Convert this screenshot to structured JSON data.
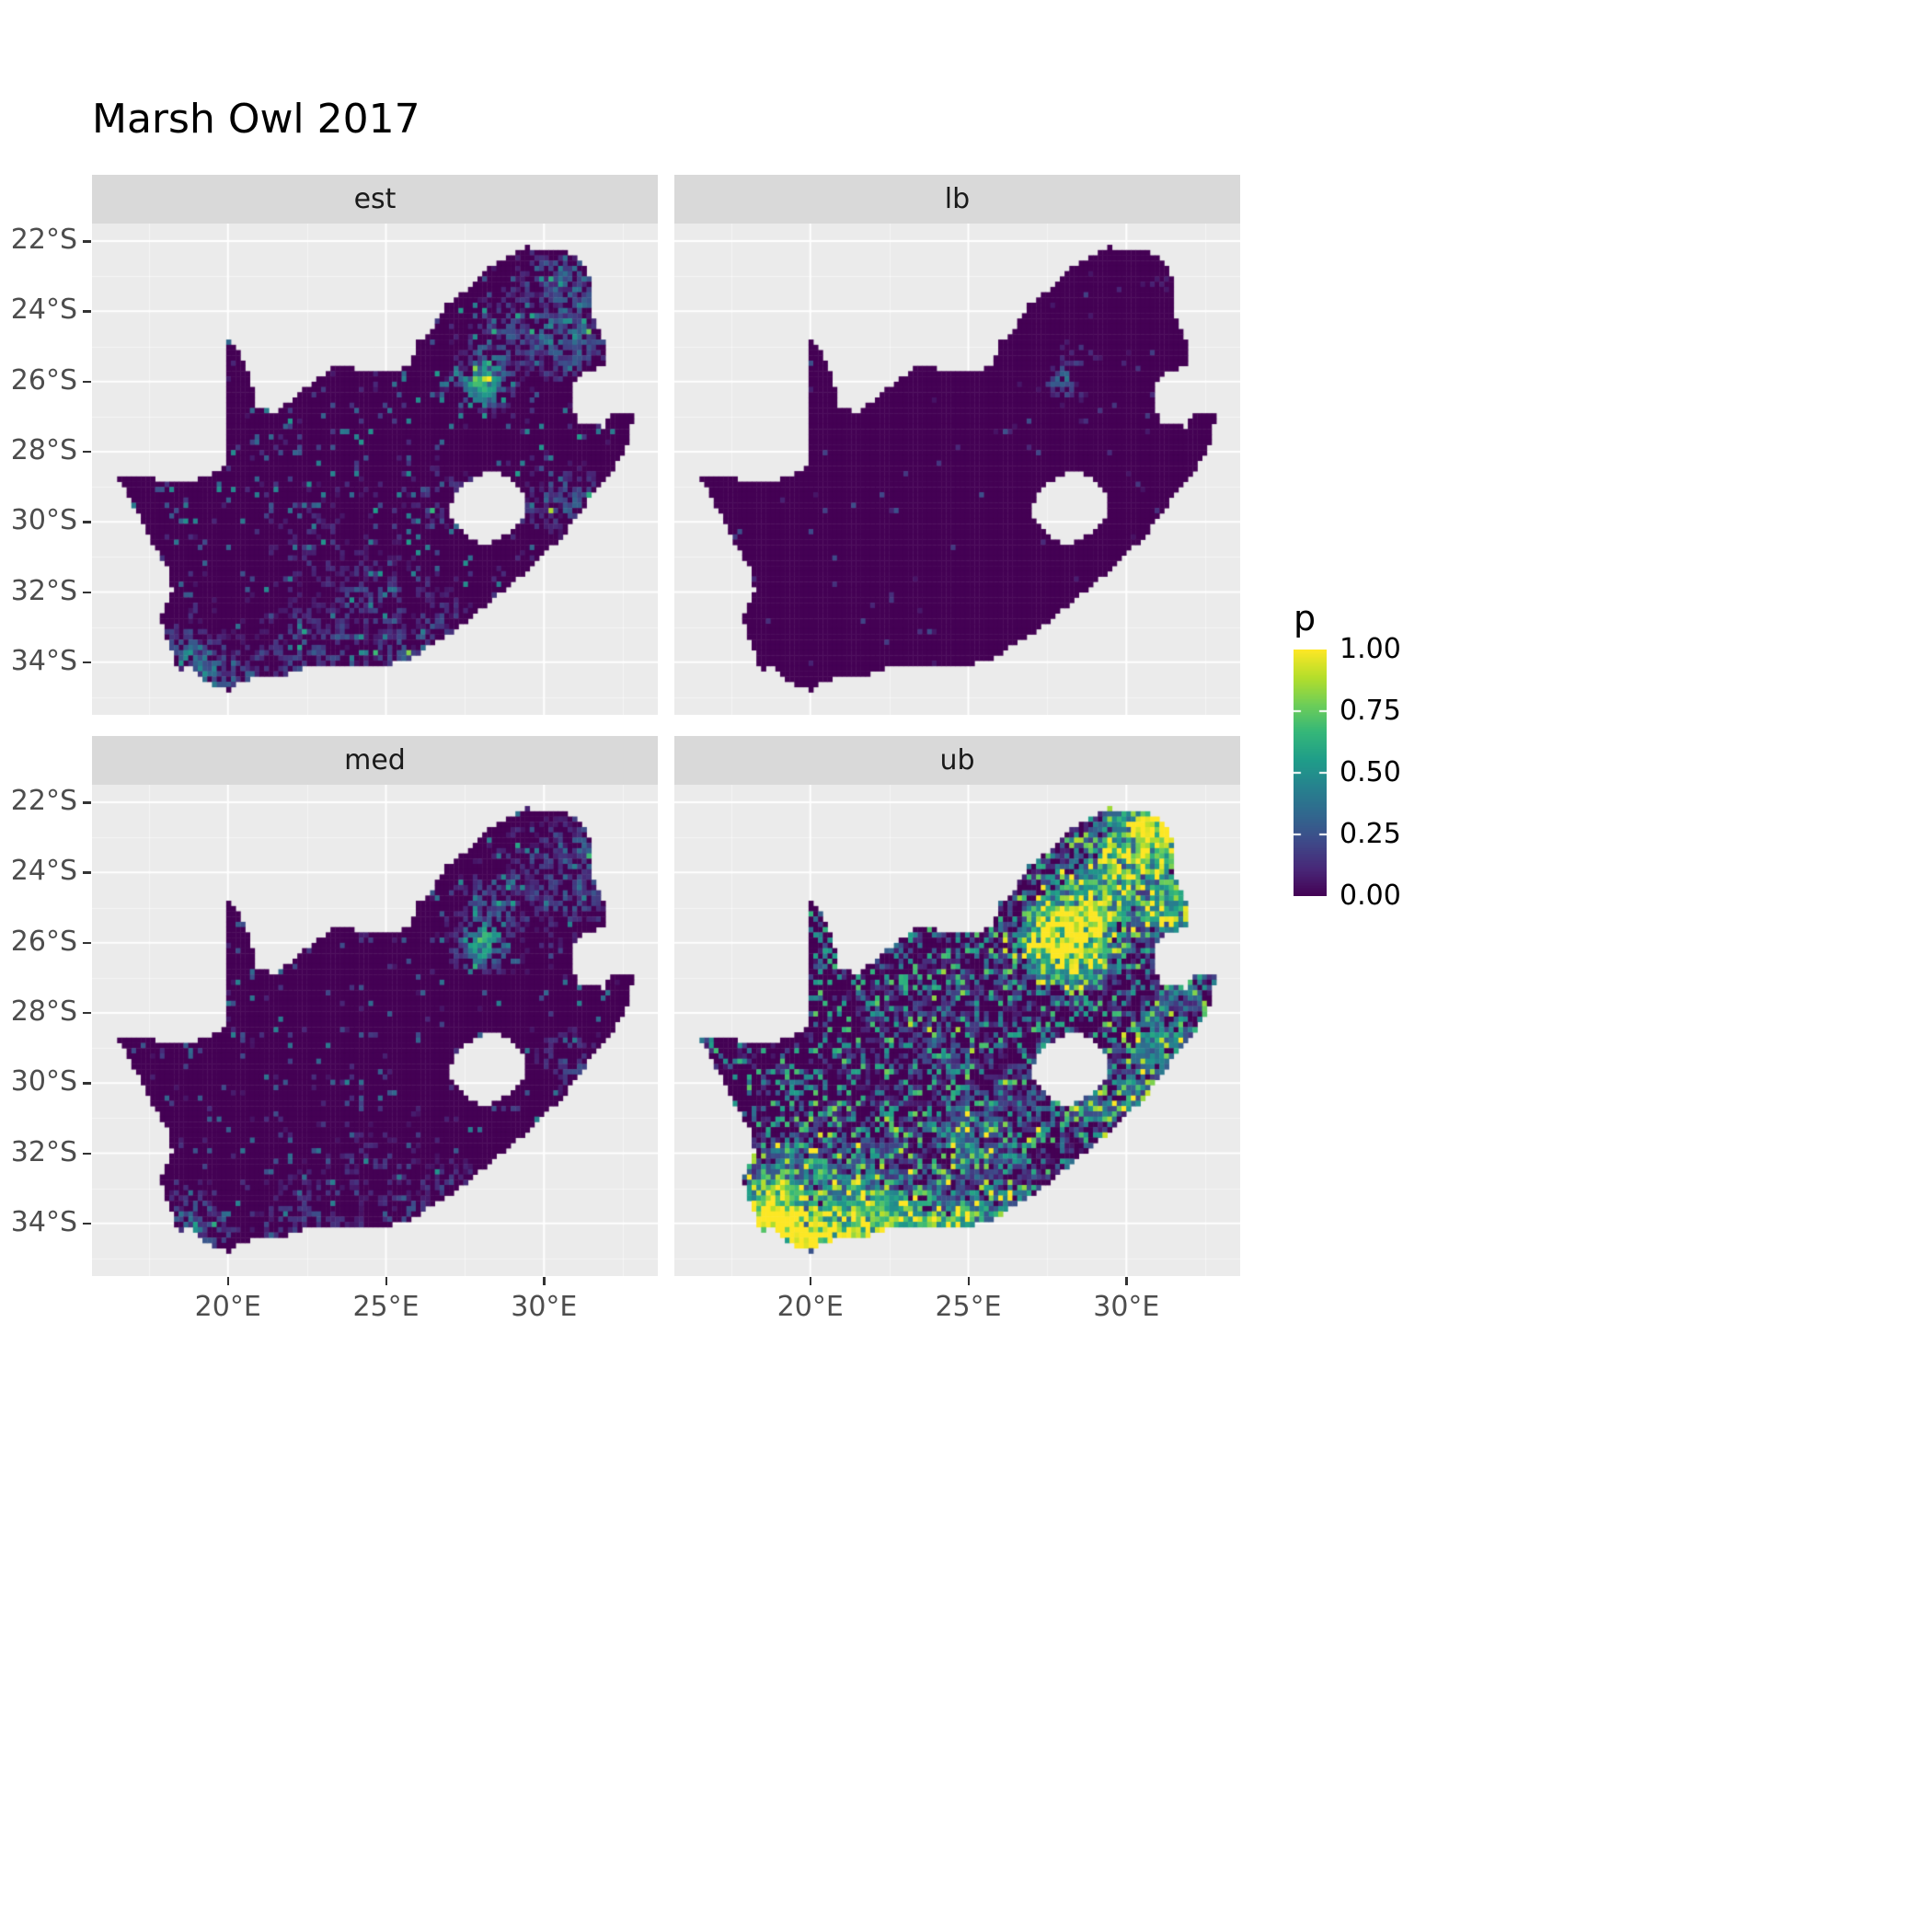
{
  "title": "Marsh Owl 2017",
  "legend": {
    "title": "p",
    "entries": [
      {
        "label": "1.00",
        "value": 1.0
      },
      {
        "label": "0.75",
        "value": 0.75
      },
      {
        "label": "0.50",
        "value": 0.5
      },
      {
        "label": "0.25",
        "value": 0.25
      },
      {
        "label": "0.00",
        "value": 0.0
      }
    ]
  },
  "colors": {
    "panel_bg": "#EBEBEB",
    "strip_bg": "#D9D9D9",
    "grid_major": "#FFFFFF",
    "grid_minor": "rgba(255,255,255,0.5)",
    "axis_text": "#4D4D4D",
    "tick_mark": "#333333",
    "title_text": "#000000",
    "viridis": [
      "#440154",
      "#482878",
      "#3e4a89",
      "#31688e",
      "#26828e",
      "#1f9e89",
      "#35b779",
      "#6ece58",
      "#b5de2b",
      "#fde725"
    ]
  },
  "chart_data": {
    "type": "heatmap",
    "title": "Marsh Owl 2017",
    "region": "South Africa (Lesotho hole, Eswatini notch)",
    "value_name": "p",
    "value_range": [
      0,
      1
    ],
    "facet_labels": [
      "est",
      "lb",
      "med",
      "ub"
    ],
    "lon_range": [
      15.7,
      33.6
    ],
    "lat_range": [
      -35.5,
      -21.5
    ],
    "x_ticks": [
      {
        "value": 20,
        "label": "20°E"
      },
      {
        "value": 25,
        "label": "25°E"
      },
      {
        "value": 30,
        "label": "30°E"
      }
    ],
    "y_ticks": [
      {
        "value": -22,
        "label": "22°S"
      },
      {
        "value": -24,
        "label": "24°S"
      },
      {
        "value": -26,
        "label": "26°S"
      },
      {
        "value": -28,
        "label": "28°S"
      },
      {
        "value": -30,
        "label": "30°S"
      },
      {
        "value": -32,
        "label": "32°S"
      },
      {
        "value": -34,
        "label": "34°S"
      }
    ],
    "minor_x": [
      17.5,
      22.5,
      27.5,
      32.5
    ],
    "minor_y": [
      -23,
      -25,
      -27,
      -29,
      -31,
      -33,
      -35
    ],
    "facets": [
      {
        "label": "est",
        "summary": "mostly near-zero; hotspot over Gauteng (~28E,26S), scattered cells in north-east, KZN, south coast and Western Cape",
        "base_rate": 0.12,
        "base_max": 0.55,
        "pow": 2.0,
        "hotspots": [
          [
            28.05,
            -26.05,
            0.6,
            0.5
          ],
          [
            28.35,
            -25.15,
            0.25,
            0.7
          ],
          [
            29.6,
            -24.2,
            0.22,
            0.9
          ],
          [
            30.9,
            -24.7,
            0.28,
            1.0
          ],
          [
            31.2,
            -23.1,
            0.3,
            0.8
          ],
          [
            30.2,
            -22.6,
            0.22,
            0.6
          ],
          [
            18.6,
            -33.9,
            0.32,
            0.7
          ],
          [
            19.3,
            -34.4,
            0.26,
            0.7
          ],
          [
            20.6,
            -34.2,
            0.2,
            0.8
          ],
          [
            22.6,
            -33.9,
            0.2,
            1.2
          ],
          [
            25.6,
            -33.8,
            0.26,
            0.6
          ],
          [
            26.9,
            -32.9,
            0.2,
            0.6
          ],
          [
            24.6,
            -32.3,
            0.18,
            1.1
          ],
          [
            30.9,
            -29.4,
            0.24,
            0.7
          ],
          [
            29.5,
            -29.7,
            0.16,
            0.8
          ],
          [
            26.6,
            -29.2,
            0.15,
            0.7
          ],
          [
            23.0,
            -30.6,
            0.12,
            1.2
          ]
        ]
      },
      {
        "label": "lb",
        "summary": "lower bound: essentially zero everywhere, a few isolated cells around Gauteng",
        "base_rate": 0.02,
        "base_max": 0.25,
        "pow": 2.5,
        "hotspots": [
          [
            28.05,
            -26.0,
            0.32,
            0.4
          ],
          [
            28.5,
            -25.4,
            0.15,
            0.5
          ],
          [
            29.9,
            -25.35,
            0.3,
            0.12
          ],
          [
            26.15,
            -27.2,
            0.15,
            0.25
          ],
          [
            31.1,
            -23.3,
            0.08,
            0.5
          ]
        ]
      },
      {
        "label": "med",
        "summary": "median: low overall with Gauteng hotspot and sparse scatter in north-east and south coast",
        "base_rate": 0.09,
        "base_max": 0.45,
        "pow": 2.0,
        "hotspots": [
          [
            28.05,
            -26.05,
            0.55,
            0.5
          ],
          [
            28.4,
            -25.1,
            0.25,
            0.8
          ],
          [
            30.9,
            -24.4,
            0.24,
            1.0
          ],
          [
            31.2,
            -23.2,
            0.24,
            0.8
          ],
          [
            29.5,
            -23.8,
            0.18,
            0.8
          ],
          [
            18.7,
            -33.9,
            0.26,
            0.7
          ],
          [
            19.4,
            -34.4,
            0.22,
            0.7
          ],
          [
            22.6,
            -34.0,
            0.18,
            1.1
          ],
          [
            25.6,
            -33.8,
            0.22,
            0.6
          ],
          [
            30.9,
            -29.4,
            0.2,
            0.7
          ],
          [
            24.6,
            -32.4,
            0.14,
            1.0
          ],
          [
            26.9,
            -32.9,
            0.16,
            0.6
          ]
        ]
      },
      {
        "label": "ub",
        "summary": "upper bound: widespread elevated values; large yellow hotspot over Gauteng, strong north-east, east coast and south coast bands",
        "base_rate": 0.4,
        "base_max": 0.75,
        "pow": 1.3,
        "hotspots": [
          [
            28.1,
            -25.95,
            0.95,
            0.95
          ],
          [
            29.2,
            -24.6,
            0.5,
            1.2
          ],
          [
            30.6,
            -23.2,
            0.55,
            1.1
          ],
          [
            31.4,
            -24.9,
            0.5,
            0.9
          ],
          [
            30.9,
            -22.5,
            0.5,
            0.7
          ],
          [
            31.9,
            -27.1,
            0.35,
            0.7
          ],
          [
            31.0,
            -28.9,
            0.45,
            0.9
          ],
          [
            30.1,
            -30.7,
            0.4,
            0.8
          ],
          [
            28.8,
            -30.1,
            0.3,
            0.8
          ],
          [
            19.0,
            -34.35,
            0.8,
            0.9
          ],
          [
            20.9,
            -34.3,
            0.65,
            1.0
          ],
          [
            22.9,
            -34.1,
            0.6,
            1.0
          ],
          [
            18.6,
            -33.4,
            0.55,
            0.8
          ],
          [
            24.9,
            -34.0,
            0.5,
            0.8
          ],
          [
            26.6,
            -33.6,
            0.4,
            0.9
          ],
          [
            25.1,
            -31.6,
            0.35,
            1.1
          ],
          [
            21.5,
            -32.6,
            0.3,
            1.4
          ],
          [
            19.5,
            -32.3,
            0.3,
            1.0
          ],
          [
            24.2,
            -28.6,
            0.2,
            1.8
          ],
          [
            27.5,
            -30.5,
            0.25,
            1.0
          ]
        ]
      }
    ],
    "outline": [
      [
        16.45,
        -28.6
      ],
      [
        17.1,
        -28.78
      ],
      [
        17.6,
        -28.76
      ],
      [
        18.2,
        -28.88
      ],
      [
        18.8,
        -28.84
      ],
      [
        19.3,
        -28.7
      ],
      [
        19.7,
        -28.52
      ],
      [
        19.98,
        -28.42
      ],
      [
        19.98,
        -24.75
      ],
      [
        20.35,
        -25.1
      ],
      [
        20.65,
        -25.75
      ],
      [
        20.8,
        -26.2
      ],
      [
        20.85,
        -26.8
      ],
      [
        21.6,
        -26.85
      ],
      [
        22.2,
        -26.35
      ],
      [
        22.7,
        -26.0
      ],
      [
        23.3,
        -25.6
      ],
      [
        23.9,
        -25.6
      ],
      [
        24.6,
        -25.75
      ],
      [
        25.3,
        -25.7
      ],
      [
        25.8,
        -25.5
      ],
      [
        25.95,
        -24.9
      ],
      [
        26.4,
        -24.6
      ],
      [
        26.9,
        -23.8
      ],
      [
        27.5,
        -23.4
      ],
      [
        28.1,
        -22.85
      ],
      [
        28.8,
        -22.45
      ],
      [
        29.4,
        -22.15
      ],
      [
        30.2,
        -22.3
      ],
      [
        31.0,
        -22.35
      ],
      [
        31.55,
        -23.2
      ],
      [
        31.55,
        -24.1
      ],
      [
        31.9,
        -24.8
      ],
      [
        31.95,
        -25.55
      ],
      [
        31.3,
        -25.75
      ],
      [
        30.85,
        -26.1
      ],
      [
        30.9,
        -26.8
      ],
      [
        31.15,
        -27.2
      ],
      [
        31.95,
        -27.3
      ],
      [
        32.13,
        -26.85
      ],
      [
        32.9,
        -26.85
      ],
      [
        32.55,
        -28.0
      ],
      [
        32.1,
        -28.6
      ],
      [
        31.4,
        -29.4
      ],
      [
        30.6,
        -30.4
      ],
      [
        29.9,
        -31.0
      ],
      [
        29.2,
        -31.6
      ],
      [
        28.4,
        -32.2
      ],
      [
        27.6,
        -32.8
      ],
      [
        26.8,
        -33.3
      ],
      [
        26.0,
        -33.75
      ],
      [
        25.65,
        -34.0
      ],
      [
        25.0,
        -34.05
      ],
      [
        24.2,
        -34.15
      ],
      [
        23.4,
        -34.1
      ],
      [
        22.6,
        -34.05
      ],
      [
        21.8,
        -34.4
      ],
      [
        21.0,
        -34.4
      ],
      [
        20.35,
        -34.55
      ],
      [
        20.0,
        -34.8
      ],
      [
        19.4,
        -34.6
      ],
      [
        19.0,
        -34.35
      ],
      [
        18.8,
        -34.1
      ],
      [
        18.45,
        -34.3
      ],
      [
        18.3,
        -33.9
      ],
      [
        18.05,
        -33.3
      ],
      [
        17.85,
        -32.8
      ],
      [
        18.25,
        -32.0
      ],
      [
        18.15,
        -31.4
      ],
      [
        17.6,
        -30.6
      ],
      [
        17.05,
        -29.6
      ],
      [
        16.7,
        -29.0
      ]
    ],
    "hole": [
      [
        27.0,
        -29.6
      ],
      [
        27.35,
        -28.95
      ],
      [
        28.1,
        -28.6
      ],
      [
        28.6,
        -28.58
      ],
      [
        29.1,
        -28.9
      ],
      [
        29.45,
        -29.3
      ],
      [
        29.3,
        -29.95
      ],
      [
        28.8,
        -30.4
      ],
      [
        28.1,
        -30.65
      ],
      [
        27.45,
        -30.35
      ],
      [
        27.05,
        -29.95
      ]
    ]
  }
}
